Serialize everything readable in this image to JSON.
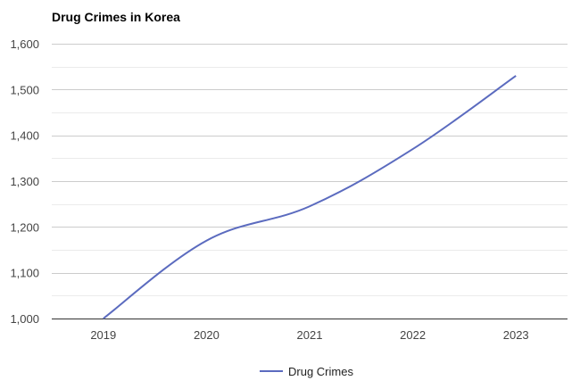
{
  "chart_data": {
    "type": "line",
    "title": "Drug Crimes in Korea",
    "xlabel": "",
    "ylabel": "",
    "categories": [
      "2019",
      "2020",
      "2021",
      "2022",
      "2023"
    ],
    "series": [
      {
        "name": "Drug Crimes",
        "values": [
          1000,
          1170,
          1245,
          1370,
          1530
        ]
      }
    ],
    "ylim": [
      1000,
      1600
    ],
    "y_ticks": [
      "1,000",
      "1,100",
      "1,200",
      "1,300",
      "1,400",
      "1,500",
      "1,600"
    ],
    "y_tick_values": [
      1000,
      1100,
      1200,
      1300,
      1400,
      1500,
      1600
    ],
    "grid": true,
    "minor_grid": true,
    "legend_position": "bottom",
    "colors": {
      "series": "#5b6bbf",
      "grid": "#cccccc",
      "minor_grid": "#ebebeb"
    }
  }
}
